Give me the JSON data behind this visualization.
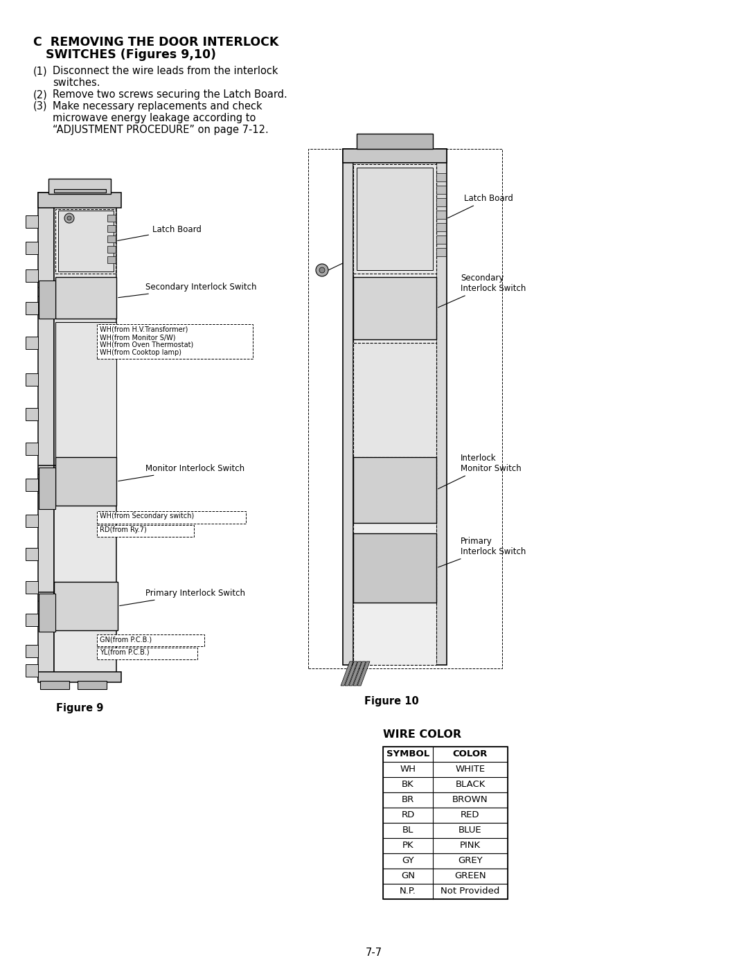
{
  "title_bold": "C  REMOVING THE DOOR INTERLOCK\n    SWITCHES (Figures 9,10)",
  "step1": "(1)  Disconnect the wire leads from the interlock\n       switches.",
  "step2": "(2)  Remove two screws securing the Latch Board.",
  "step3_l1": "(3)  Make necessary replacements and check",
  "step3_l2": "       microwave energy leakage according to",
  "step3_l3": "       “ADJUSTMENT PROCEDURE” on page 7-12.",
  "fig9_label": "Figure 9",
  "fig10_label": "Figure 10",
  "wire_color_title": "WIRE COLOR",
  "wire_symbols": [
    "SYMBOL",
    "WH",
    "BK",
    "BR",
    "RD",
    "BL",
    "PK",
    "GY",
    "GN",
    "N.P."
  ],
  "wire_colors": [
    "COLOR",
    "WHITE",
    "BLACK",
    "BROWN",
    "RED",
    "BLUE",
    "PINK",
    "GREY",
    "GREEN",
    "Not Provided"
  ],
  "page_number": "7-7",
  "bg": "#ffffff",
  "fg": "#000000",
  "label_latch_board": "Latch Board",
  "label_secondary": "Secondary Interlock Switch",
  "label_monitor": "Monitor Interlock Switch",
  "label_primary": "Primary Interlock Switch",
  "label_latch_board_r": "Latch Board",
  "label_secondary_r": "Secondary\nInterlock Switch",
  "label_monitor_r": "Interlock\nMonitor Switch",
  "label_primary_r": "Primary\nInterlock Switch",
  "wh_hvt": "WH(from H.V.Transformer)",
  "wh_msw": "WH(from Monitor S/W)",
  "wh_ot": "WH(from Oven Thermostat)",
  "wh_cl": "WH(from Cooktop lamp)",
  "wh_ss": "WH(from Secondary switch)",
  "rd_ry": "RD(from Ry.7)",
  "gn_pcb": "GN(from P.C.B.)",
  "yl_pcb": "YL(from P.C.B.)"
}
